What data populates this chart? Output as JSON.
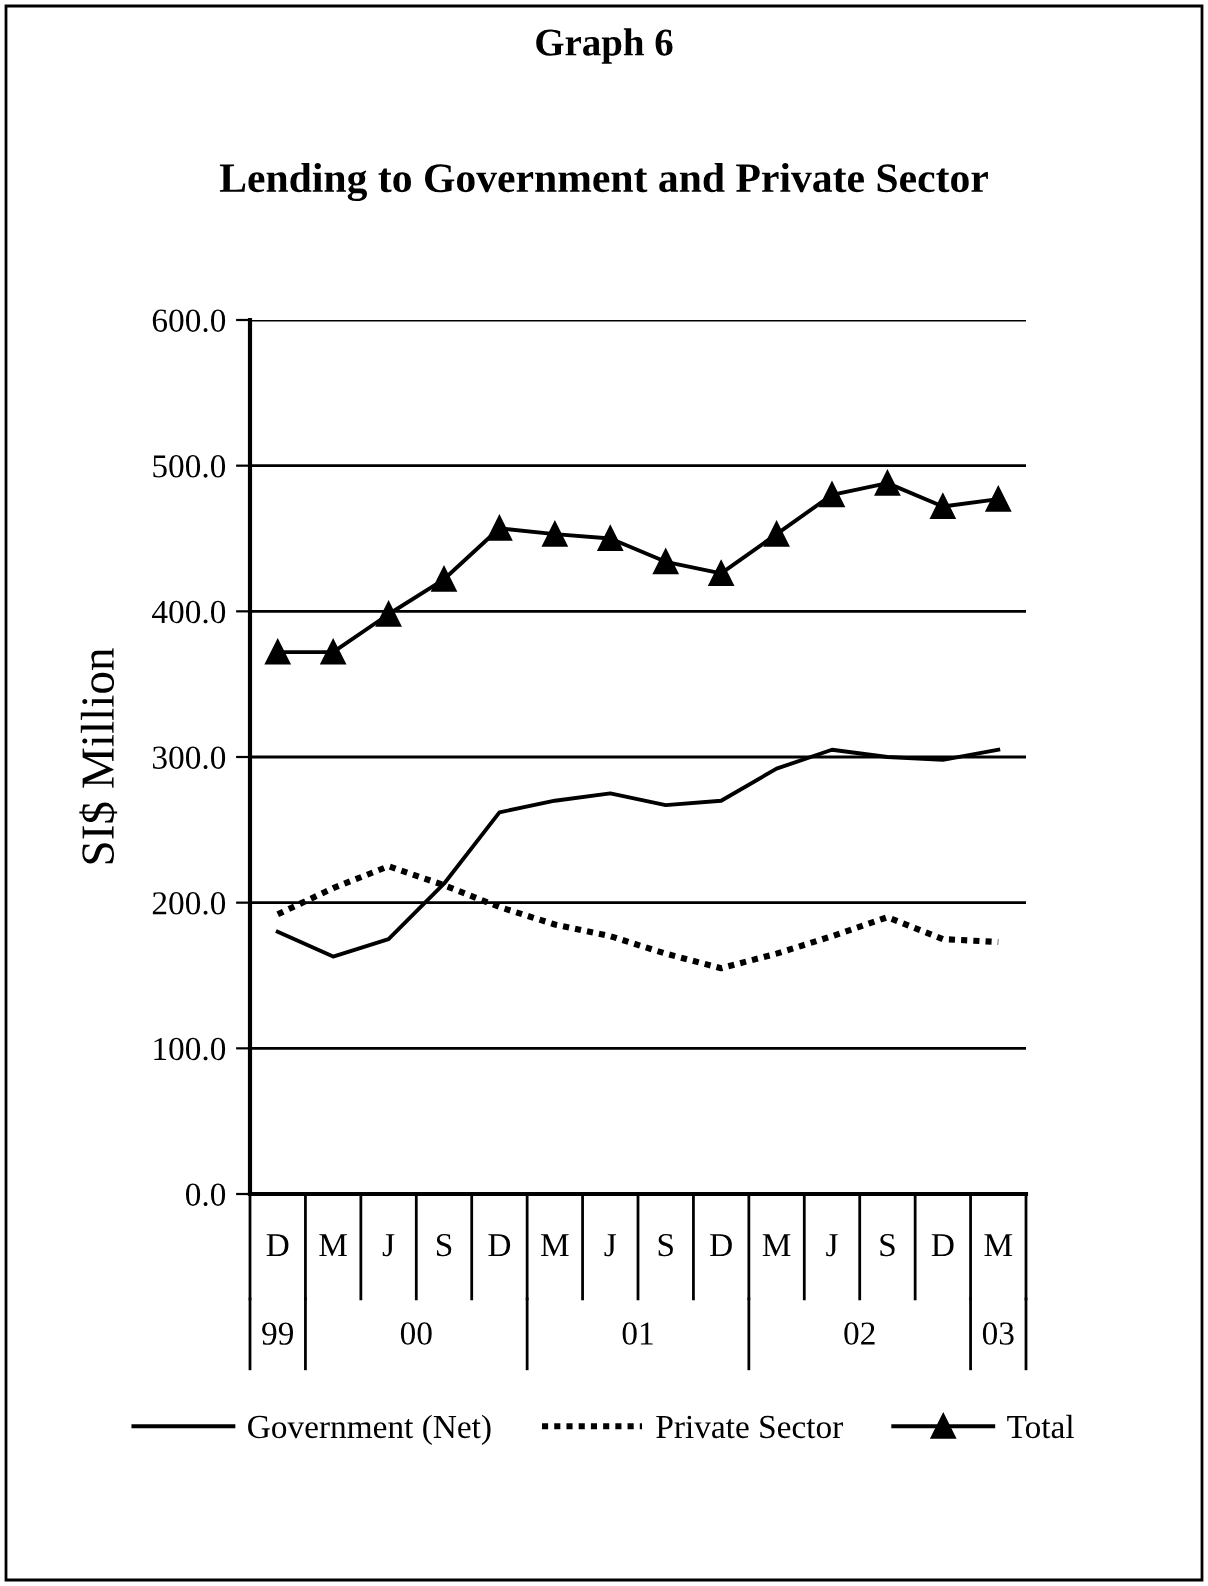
{
  "chart_data": {
    "type": "line",
    "title": "Graph 6",
    "subtitle": "Lending to Government and Private Sector",
    "ylabel": "SI$ Million",
    "categories": [
      "D",
      "M",
      "J",
      "S",
      "D",
      "M",
      "J",
      "S",
      "D",
      "M",
      "J",
      "S",
      "D",
      "M"
    ],
    "series": [
      {
        "name": "Government (Net)",
        "color": "#000000",
        "line_style": "solid",
        "values": [
          180,
          163,
          175,
          213,
          262,
          270,
          275,
          267,
          270,
          292,
          305,
          300,
          298,
          305
        ]
      },
      {
        "name": "Private Sector",
        "color": "#000000",
        "line_style": "dotted",
        "values": [
          192,
          210,
          225,
          212,
          197,
          185,
          177,
          165,
          155,
          165,
          177,
          190,
          175,
          173
        ]
      },
      {
        "name": "Total",
        "color": "#000000",
        "line_style": "solid",
        "marker": "triangle",
        "values": [
          372,
          372,
          398,
          422,
          457,
          453,
          450,
          434,
          426,
          453,
          480,
          488,
          472,
          477
        ]
      }
    ],
    "annotations": [
      "99",
      "00",
      "01",
      "02",
      "03"
    ],
    "ylim": [
      0,
      600
    ],
    "yticks": [
      {
        "value": 0,
        "label": "0.0"
      },
      {
        "value": 100,
        "label": "100.0"
      },
      {
        "value": 200,
        "label": "200.0"
      },
      {
        "value": 300,
        "label": "300.0"
      },
      {
        "value": 400,
        "label": "400.0"
      },
      {
        "value": 500,
        "label": "500.0"
      },
      {
        "value": 600,
        "label": "600.0"
      }
    ],
    "grid": "y",
    "legend": "bottom"
  }
}
